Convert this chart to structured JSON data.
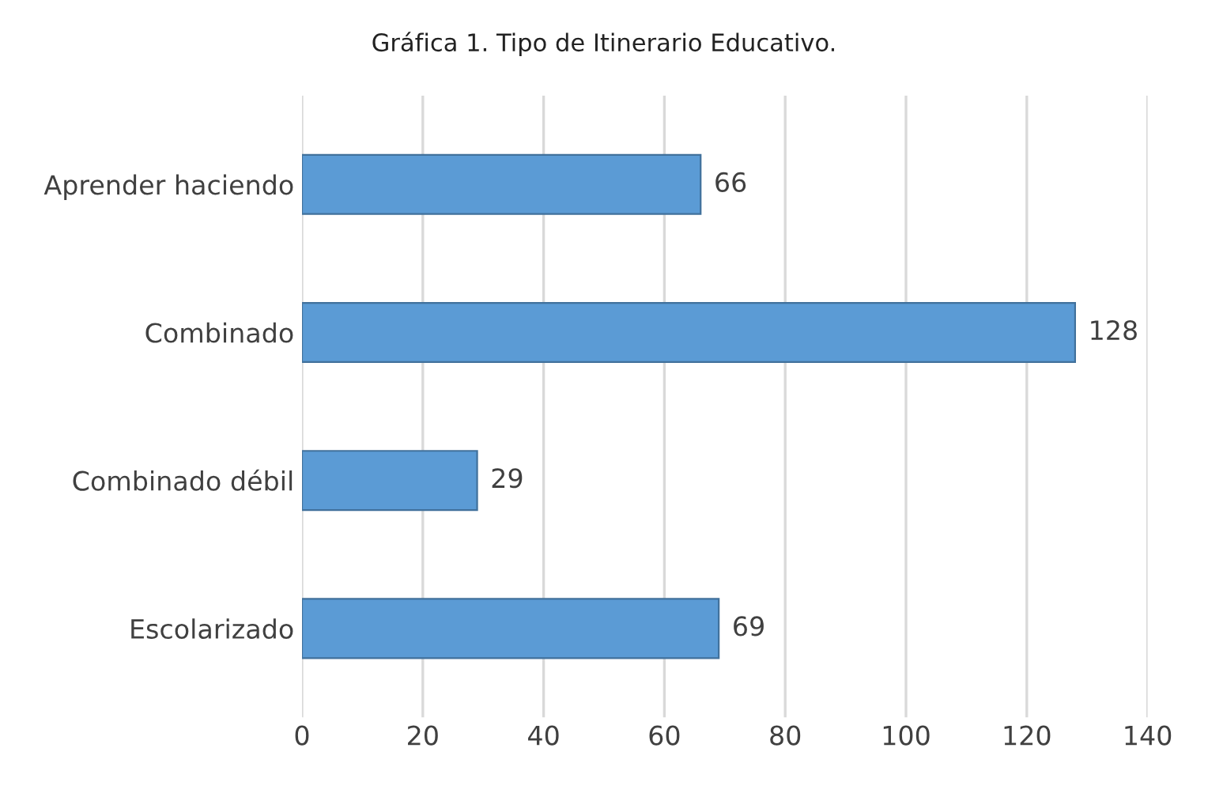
{
  "chart_data": {
    "type": "bar",
    "orientation": "horizontal",
    "title": "Gráfica 1. Tipo de Itinerario Educativo.",
    "categories": [
      "Aprender haciendo",
      "Combinado",
      "Combinado débil",
      "Escolarizado"
    ],
    "values": [
      66,
      128,
      29,
      69
    ],
    "color": "#5b9bd5",
    "xlim": [
      0,
      140
    ],
    "xticks": [
      0,
      20,
      40,
      60,
      80,
      100,
      120,
      140
    ],
    "grid": "x",
    "data_labels": true
  }
}
